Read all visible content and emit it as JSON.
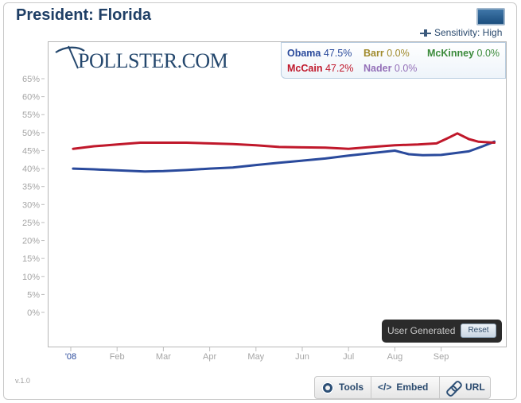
{
  "header": {
    "title": "President: Florida",
    "sensitivity_label": "Sensitivity: High",
    "fullscreen_icon": "fullscreen-icon",
    "slider_icon": "slider-icon"
  },
  "logo": {
    "text": "POLLSTER.COM",
    "icon": "pollster-swoosh-icon"
  },
  "legend": {
    "items": [
      {
        "name": "Obama",
        "value": "47.5%",
        "color": "#2a4a9c"
      },
      {
        "name": "Barr",
        "value": "0.0%",
        "color": "#a08a2c"
      },
      {
        "name": "McKinney",
        "value": "0.0%",
        "color": "#3a8a3a"
      },
      {
        "name": "McCain",
        "value": "47.2%",
        "color": "#c0182b"
      },
      {
        "name": "Nader",
        "value": "0.0%",
        "color": "#9470b8"
      }
    ]
  },
  "chart_data": {
    "type": "line",
    "title": "President: Florida",
    "xlabel": "",
    "ylabel": "",
    "ylim": [
      0,
      65
    ],
    "yticks": [
      "65%",
      "60%",
      "55%",
      "50%",
      "45%",
      "40%",
      "35%",
      "30%",
      "25%",
      "20%",
      "15%",
      "10%",
      "5%",
      "0%"
    ],
    "xticks": [
      "'08",
      "Feb",
      "Mar",
      "Apr",
      "May",
      "Jun",
      "Jul",
      "Aug",
      "Sep"
    ],
    "grid": false,
    "legend_placement": "top-right",
    "series": [
      {
        "name": "Obama",
        "color": "#2a4a9c",
        "points": [
          [
            0.05,
            40.0
          ],
          [
            0.5,
            39.8
          ],
          [
            1.0,
            39.5
          ],
          [
            1.6,
            39.2
          ],
          [
            2.0,
            39.3
          ],
          [
            2.5,
            39.6
          ],
          [
            3.0,
            40.0
          ],
          [
            3.5,
            40.3
          ],
          [
            4.0,
            41.0
          ],
          [
            4.5,
            41.6
          ],
          [
            5.0,
            42.2
          ],
          [
            5.5,
            42.8
          ],
          [
            6.0,
            43.6
          ],
          [
            6.5,
            44.3
          ],
          [
            7.0,
            45.0
          ],
          [
            7.3,
            44.0
          ],
          [
            7.6,
            43.7
          ],
          [
            8.0,
            43.8
          ],
          [
            8.3,
            44.3
          ],
          [
            8.6,
            44.8
          ],
          [
            8.9,
            46.2
          ],
          [
            9.15,
            47.5
          ]
        ]
      },
      {
        "name": "McCain",
        "color": "#c0182b",
        "points": [
          [
            0.05,
            45.5
          ],
          [
            0.5,
            46.2
          ],
          [
            1.0,
            46.7
          ],
          [
            1.5,
            47.2
          ],
          [
            2.0,
            47.2
          ],
          [
            2.5,
            47.2
          ],
          [
            3.0,
            47.0
          ],
          [
            3.5,
            46.8
          ],
          [
            4.0,
            46.5
          ],
          [
            4.5,
            46.0
          ],
          [
            5.0,
            45.9
          ],
          [
            5.5,
            45.8
          ],
          [
            6.0,
            45.5
          ],
          [
            6.5,
            46.0
          ],
          [
            7.0,
            46.5
          ],
          [
            7.5,
            46.7
          ],
          [
            7.9,
            47.0
          ],
          [
            8.15,
            48.5
          ],
          [
            8.35,
            49.8
          ],
          [
            8.6,
            48.2
          ],
          [
            8.8,
            47.5
          ],
          [
            9.15,
            47.2
          ]
        ]
      }
    ]
  },
  "user_generated": {
    "label": "User Generated",
    "reset_label": "Reset"
  },
  "footer": {
    "version": "v.1.0",
    "buttons": [
      {
        "label": "Tools",
        "icon": "gear-icon"
      },
      {
        "label": "Embed",
        "icon": "code-icon"
      },
      {
        "label": "URL",
        "icon": "link-icon"
      }
    ]
  }
}
